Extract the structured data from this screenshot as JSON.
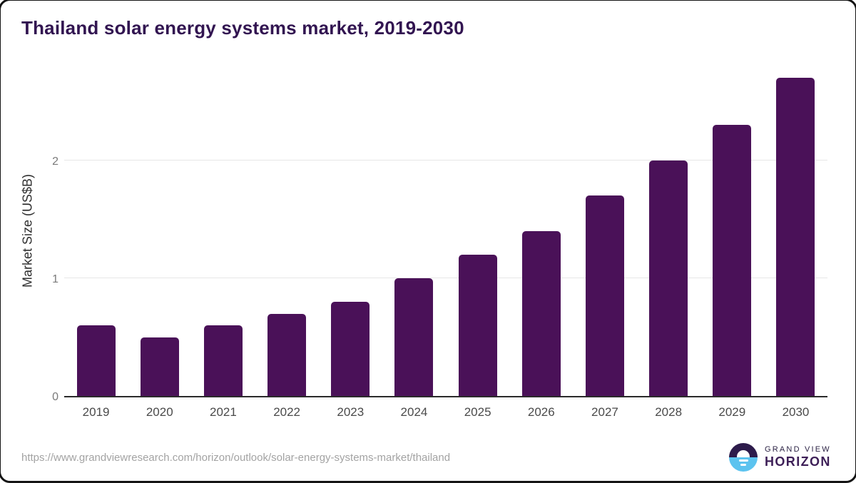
{
  "title": "Thailand solar energy systems market, 2019-2030",
  "chart_data": {
    "type": "bar",
    "title": "Thailand solar energy systems market, 2019-2030",
    "categories": [
      "2019",
      "2020",
      "2021",
      "2022",
      "2023",
      "2024",
      "2025",
      "2026",
      "2027",
      "2028",
      "2029",
      "2030"
    ],
    "values": [
      0.6,
      0.5,
      0.6,
      0.7,
      0.8,
      1.0,
      1.2,
      1.4,
      1.7,
      2.0,
      2.3,
      2.7
    ],
    "xlabel": "",
    "ylabel": "Market Size (US$B)",
    "ytick_labels": [
      "0",
      "1",
      "2"
    ],
    "ytick_values": [
      0,
      1,
      2
    ],
    "ylim": [
      0,
      2.83
    ],
    "grid": "horizontal",
    "legend": "none"
  },
  "colors": {
    "bar": "#4a1158",
    "title": "#321551",
    "gridline": "#e7e7e7",
    "axis_line": "#2b2b2b",
    "logo_dark": "#2d1b4b",
    "logo_blue": "#5cc3ef"
  },
  "footer": {
    "source_url": "https://www.grandviewresearch.com/horizon/outlook/solar-energy-systems-market/thailand",
    "logo": {
      "top_text": "GRAND VIEW",
      "bottom_text": "HORIZON"
    }
  }
}
